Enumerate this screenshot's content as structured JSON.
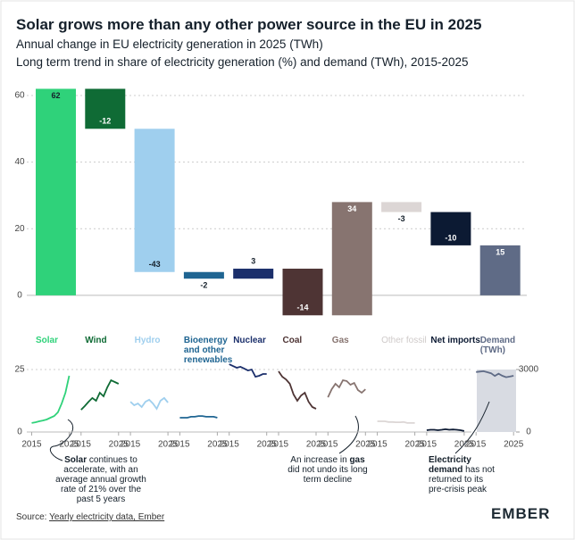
{
  "chart_data": [
    {
      "type": "waterfall",
      "title": "Solar grows more than any other power source in the EU in 2025",
      "subtitles": [
        "Annual change in EU electricity generation in 2025 (TWh)",
        "Long term trend in share of electricity generation (%) and demand (TWh), 2015-2025"
      ],
      "categories": [
        "Solar",
        "Wind",
        "Hydro",
        "Bioenergy and other renewables",
        "Nuclear",
        "Coal",
        "Gas",
        "Other fossil",
        "Net imports",
        "Demand (TWh)"
      ],
      "values": [
        62,
        -12,
        -43,
        -2,
        3,
        -14,
        34,
        -3,
        -10,
        15
      ],
      "colors": [
        "#2fd27a",
        "#0f6b35",
        "#9fcfee",
        "#1f6592",
        "#1b2f6b",
        "#4e3434",
        "#877470",
        "#dcd6d5",
        "#0c1a33",
        "#5f6b86"
      ],
      "label_colors": [
        "#2fd27a",
        "#0f6b35",
        "#9fcfee",
        "#1f6592",
        "#1b2f6b",
        "#4e3434",
        "#877470",
        "#cfcac9",
        "#0c1a33",
        "#5f6b86"
      ],
      "ylim": [
        -7,
        62
      ],
      "yticks": [
        0,
        20,
        40,
        60
      ],
      "grid": true,
      "source": [
        "Source: ",
        "Yearly electricity data, Ember"
      ],
      "brand": "EMBER"
    },
    {
      "type": "line",
      "x": [
        2015,
        2016,
        2017,
        2018,
        2019,
        2020,
        2021,
        2022,
        2023,
        2024,
        2025
      ],
      "xlim": [
        2015,
        2025
      ],
      "xticks": [
        2015,
        2025
      ],
      "ylim": [
        0,
        25
      ],
      "yticks": [
        0,
        25
      ],
      "y2lim": [
        0,
        3000
      ],
      "y2ticks": [
        0,
        3000
      ],
      "series": [
        {
          "color": "#2fd27a",
          "values": [
            3.6,
            3.9,
            4.3,
            4.6,
            5,
            5.7,
            6.4,
            7.9,
            11.4,
            15.7,
            22.5
          ]
        },
        {
          "color": "#0f6b35",
          "values": [
            8.9,
            10.4,
            12.1,
            13.6,
            12.5,
            15.7,
            14.3,
            17.9,
            20.7,
            20,
            19.3
          ]
        },
        {
          "color": "#9fcfee",
          "values": [
            12.1,
            10.7,
            11.4,
            10,
            12.1,
            12.9,
            11.4,
            9.3,
            12.5,
            13.6,
            11.8
          ]
        },
        {
          "color": "#1f6592",
          "values": [
            5.7,
            5.7,
            5.7,
            6.1,
            6.1,
            6.4,
            6.4,
            6.1,
            6.1,
            6.1,
            5.7
          ]
        },
        {
          "color": "#1b2f6b",
          "values": [
            27.1,
            26.4,
            25.7,
            26.1,
            25.4,
            24.6,
            25,
            22.1,
            22.5,
            23.2,
            23.2
          ]
        },
        {
          "color": "#4e3434",
          "values": [
            24.3,
            22.1,
            21,
            19.3,
            15,
            12.5,
            14.6,
            15.7,
            12.1,
            10,
            9.3
          ]
        },
        {
          "color": "#877470",
          "values": [
            13.9,
            17.1,
            19.3,
            17.9,
            20.7,
            20.4,
            18.9,
            19.6,
            16.8,
            15.7,
            17.1
          ]
        },
        {
          "color": "#dcd6d5",
          "values": [
            4.3,
            4.3,
            4.3,
            4,
            4,
            3.9,
            3.9,
            4,
            3.6,
            3.6,
            3.6
          ]
        },
        {
          "color": "#0c1a33",
          "values": [
            0.7,
            0.9,
            0.9,
            0.7,
            0.9,
            1.1,
            0.9,
            1,
            0.9,
            0.7,
            0.4
          ]
        },
        {
          "color": "#5f6b86",
          "axis": "y2",
          "values": [
            2880,
            2900,
            2920,
            2870,
            2820,
            2690,
            2800,
            2700,
            2630,
            2660,
            2700
          ]
        }
      ],
      "annotations": [
        [
          "Solar",
          " continues to accelerate, with an average annual growth rate of 21% over the past 5 years"
        ],
        [
          "An increase in ",
          "gas",
          " did not undo its long term decline"
        ],
        [
          "Electricity demand",
          " has not returned to its pre-crisis peak"
        ]
      ]
    }
  ]
}
